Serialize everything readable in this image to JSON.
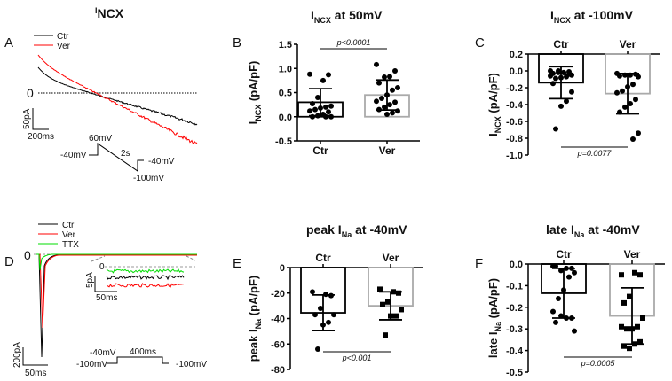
{
  "panels": {
    "A": {
      "letter": "A",
      "title_main": "I",
      "title_sub": "NCX",
      "legend": [
        "Ctr",
        "Ver"
      ],
      "zero": "0",
      "scale_y": "50pA",
      "scale_x": "200ms",
      "protocol": {
        "hold": "-40mV",
        "peak": "60mV",
        "duration": "2s",
        "end": "-100mV",
        "return": "-40mV"
      }
    },
    "D": {
      "letter": "D",
      "legend": [
        "Ctr",
        "Ver",
        "TTX"
      ],
      "zero": "0",
      "inset_zero": "0",
      "scale_y": "200pA",
      "scale_x": "50ms",
      "inset_scale_y": "5pA",
      "inset_scale_x": "50ms",
      "protocol": {
        "step": "-40mV",
        "duration": "400ms",
        "hold": "-100mV",
        "end": "-100mV"
      }
    }
  },
  "colors": {
    "ctr": "#000000",
    "ver": "#ff0000",
    "ttx": "#00dd00",
    "ver_bar": "#aaaaaa"
  },
  "chart_data": [
    {
      "panel": "B",
      "letter": "B",
      "type": "bar",
      "title_main": "I",
      "title_sub": "NCX",
      "title_rest": " at 50mV",
      "ylabel_main": "I",
      "ylabel_sub": "NCX",
      "ylabel_rest": " (pA/pF)",
      "ylim": [
        -0.5,
        1.5
      ],
      "yticks": [
        "1.5",
        "1.0",
        "0.5",
        "0.0",
        "-0.5"
      ],
      "ytick_values": [
        1.5,
        1.0,
        0.5,
        0.0,
        -0.5
      ],
      "categories": [
        "Ctr",
        "Ver"
      ],
      "means": [
        0.3,
        0.45
      ],
      "sd": [
        0.28,
        0.31
      ],
      "pvalue": "p<0.0001",
      "points": [
        [
          0.88,
          0.87,
          0.75,
          0.4,
          0.27,
          0.22,
          0.2,
          0.18,
          0.15,
          0.12,
          0.1,
          0.05,
          0.02,
          0.0,
          0.0,
          0.0
        ],
        [
          1.08,
          0.95,
          0.83,
          0.82,
          0.7,
          0.6,
          0.55,
          0.45,
          0.38,
          0.32,
          0.3,
          0.25,
          0.2,
          0.15,
          0.12,
          0.08,
          0.05
        ]
      ]
    },
    {
      "panel": "C",
      "letter": "C",
      "type": "bar",
      "title_main": "I",
      "title_sub": "NCX",
      "title_rest": " at -100mV",
      "ylabel_main": "I",
      "ylabel_sub": "NCX",
      "ylabel_rest": " (pA/pF)",
      "ylim": [
        -1.0,
        0.2
      ],
      "yticks": [
        "0.2",
        "0.0",
        "-0.2",
        "-0.4",
        "-0.6",
        "-0.8",
        "-1.0"
      ],
      "ytick_values": [
        0.2,
        0.0,
        -0.2,
        -0.4,
        -0.6,
        -0.8,
        -1.0
      ],
      "categories": [
        "Ctr",
        "Ver"
      ],
      "means": [
        -0.14,
        -0.27
      ],
      "sd": [
        0.19,
        0.24
      ],
      "pvalue": "p=0.0077",
      "points": [
        [
          0.0,
          -0.01,
          -0.02,
          -0.02,
          -0.03,
          -0.05,
          -0.07,
          -0.08,
          -0.09,
          -0.06,
          -0.04,
          -0.02,
          0.0,
          -0.15,
          -0.25,
          -0.36,
          -0.42,
          -0.69
        ],
        [
          -0.03,
          -0.04,
          -0.05,
          -0.05,
          -0.06,
          -0.07,
          -0.16,
          -0.19,
          -0.24,
          -0.26,
          -0.34,
          -0.39,
          -0.43,
          -0.49,
          -0.74,
          -0.81
        ]
      ]
    },
    {
      "panel": "E",
      "letter": "E",
      "type": "bar",
      "title_main": "peak I",
      "title_sub": "Na",
      "title_rest": "  at -40mV",
      "ylabel_main": "peak I",
      "ylabel_sub": "Na",
      "ylabel_rest": " (pA/pF)",
      "ylim": [
        -80,
        0
      ],
      "yticks": [
        "0",
        "-20",
        "-40",
        "-60",
        "-80"
      ],
      "ytick_values": [
        0,
        -20,
        -40,
        -60,
        -80
      ],
      "categories": [
        "Ctr",
        "Ver"
      ],
      "means": [
        -35.5,
        -30
      ],
      "sd": [
        14,
        11
      ],
      "pvalue": "p<0.001",
      "points": [
        [
          -19,
          -22,
          -21,
          -32,
          -37,
          -37,
          -43,
          -45,
          -64
        ],
        [
          -17,
          -20,
          -19,
          -27,
          -29,
          -33,
          -38,
          -38,
          -53
        ]
      ]
    },
    {
      "panel": "F",
      "letter": "F",
      "type": "bar",
      "title_main": "late I",
      "title_sub": "Na",
      "title_rest": " at -40mV",
      "ylabel_main": "late I",
      "ylabel_sub": "Na",
      "ylabel_rest": " (pA/pF)",
      "ylim": [
        -0.5,
        0.0
      ],
      "yticks": [
        "0.0",
        "-0.1",
        "-0.2",
        "-0.3",
        "-0.4",
        "-0.5"
      ],
      "ytick_values": [
        0.0,
        -0.1,
        -0.2,
        -0.3,
        -0.4,
        -0.5
      ],
      "categories": [
        "Ctr",
        "Ver"
      ],
      "means": [
        -0.135,
        -0.24
      ],
      "sd": [
        0.115,
        0.13
      ],
      "pvalue": "p=0.0005",
      "points": [
        [
          -0.01,
          -0.02,
          -0.02,
          -0.03,
          -0.01,
          -0.04,
          -0.06,
          -0.12,
          -0.16,
          -0.22,
          -0.25,
          -0.25,
          -0.24,
          -0.27,
          -0.31
        ],
        [
          -0.05,
          -0.05,
          -0.04,
          -0.15,
          -0.18,
          -0.25,
          -0.29,
          -0.3,
          -0.3,
          -0.29,
          -0.36,
          -0.37,
          -0.39,
          -0.38
        ]
      ]
    }
  ]
}
